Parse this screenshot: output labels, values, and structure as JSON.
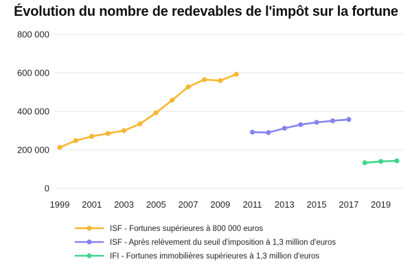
{
  "chart_data": {
    "type": "line",
    "title": "Évolution du nombre de redevables de l'impôt sur la fortune",
    "xlabel": "",
    "ylabel": "",
    "xlim": [
      1999,
      2020
    ],
    "ylim": [
      0,
      800000
    ],
    "x_ticks": [
      1999,
      2001,
      2003,
      2005,
      2007,
      2009,
      2011,
      2013,
      2015,
      2017,
      2019
    ],
    "y_ticks": [
      0,
      200000,
      400000,
      600000,
      800000
    ],
    "y_tick_labels": [
      "0",
      "200 000",
      "400 000",
      "600 000",
      "800 000"
    ],
    "grid": "horizontal",
    "legend_position": "bottom",
    "series": [
      {
        "name": "ISF - Fortunes supérieures à 800 000 euros",
        "color": "#f5b731",
        "x": [
          1999,
          2000,
          2001,
          2002,
          2003,
          2004,
          2005,
          2006,
          2007,
          2008,
          2009,
          2010
        ],
        "values": [
          213000,
          248000,
          270000,
          285000,
          300000,
          335000,
          393000,
          458000,
          527000,
          565000,
          560000,
          593000
        ]
      },
      {
        "name": "ISF - Après relèvement du seuil d'imposition à 1,3 million d'euros",
        "color": "#8484f0",
        "x": [
          2011,
          2012,
          2013,
          2014,
          2015,
          2016,
          2017
        ],
        "values": [
          292000,
          290000,
          312000,
          331000,
          343000,
          351000,
          358000
        ]
      },
      {
        "name": "IFI - Fortunes immobilières supérieures à 1,3 million d'euros",
        "color": "#3dd68c",
        "x": [
          2018,
          2019,
          2020
        ],
        "values": [
          133000,
          140000,
          143000
        ]
      }
    ]
  }
}
